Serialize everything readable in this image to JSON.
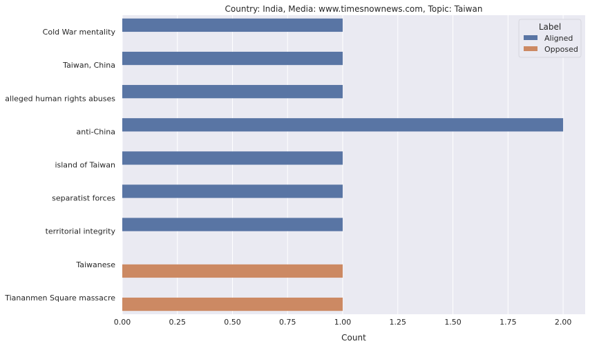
{
  "chart_data": {
    "type": "bar",
    "orientation": "horizontal",
    "title": "Country: India, Media: www.timesnownews.com, Topic: Taiwan",
    "xlabel": "Count",
    "ylabel": "",
    "xlim": [
      0,
      2.1
    ],
    "xticks": [
      0.0,
      0.25,
      0.5,
      0.75,
      1.0,
      1.25,
      1.5,
      1.75,
      2.0
    ],
    "xtick_labels": [
      "0.00",
      "0.25",
      "0.50",
      "0.75",
      "1.00",
      "1.25",
      "1.50",
      "1.75",
      "2.00"
    ],
    "categories": [
      "Cold War mentality",
      "Taiwan, China",
      "alleged human rights abuses",
      "anti-China",
      "island of Taiwan",
      "separatist forces",
      "territorial integrity",
      "Taiwanese",
      "Tiananmen Square massacre"
    ],
    "series": [
      {
        "name": "Aligned",
        "color": "#5975a4",
        "values": [
          1,
          1,
          1,
          2,
          1,
          1,
          1,
          null,
          null
        ]
      },
      {
        "name": "Opposed",
        "color": "#cc8963",
        "values": [
          null,
          null,
          null,
          null,
          null,
          null,
          null,
          1,
          1
        ]
      }
    ],
    "legend": {
      "title": "Label",
      "placement": "top-right"
    },
    "grid": true,
    "background": "#eaeaf2"
  }
}
